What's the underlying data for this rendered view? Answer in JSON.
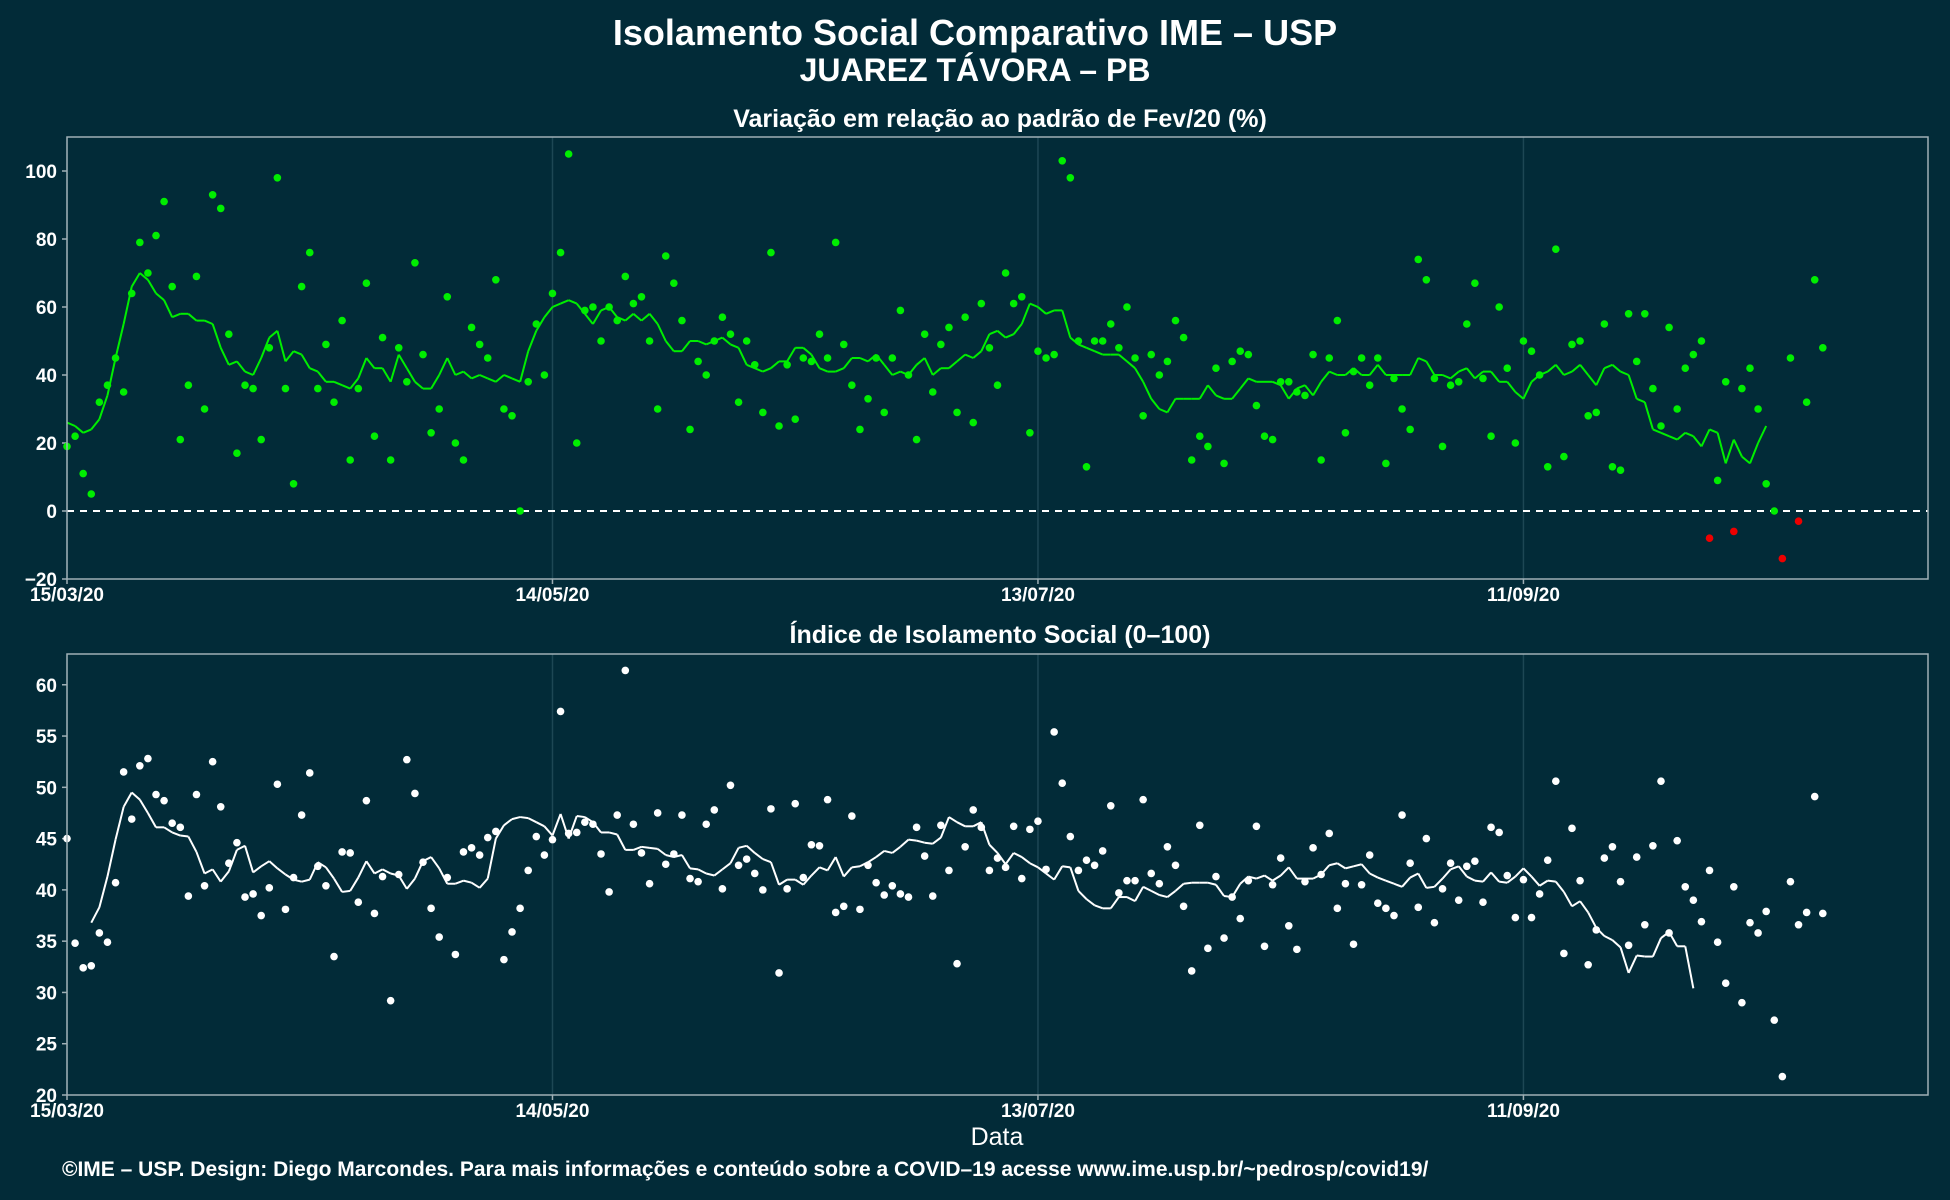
{
  "header": {
    "title": "Isolamento Social Comparativo IME – USP",
    "subtitle": "JUAREZ TÁVORA – PB"
  },
  "footer": {
    "text": "©IME – USP. Design: Diego Marcondes. Para mais informações e conteúdo sobre a COVID–19 acesse www.ime.usp.br/~pedrosp/covid19/"
  },
  "colors": {
    "background": "#022b38",
    "panel_border": "#9fb0b6",
    "grid": "#1d4754",
    "variation_positive": "#00ee00",
    "variation_negative": "#ee0000",
    "index_series": "#ffffff"
  },
  "chart_data": [
    {
      "type": "scatter",
      "title": "Variação em relação ao padrão de Fev/20 (%)",
      "xlabel": "",
      "ylabel": "",
      "x_start": "15/03/20",
      "x_tick_labels": [
        "15/03/20",
        "14/05/20",
        "13/07/20",
        "11/09/20"
      ],
      "x_tick_day_offsets": [
        0,
        60,
        120,
        180
      ],
      "ylim": [
        -20,
        110
      ],
      "y_ticks": [
        -20,
        0,
        20,
        40,
        60,
        80,
        100
      ],
      "reference_line": 0,
      "negative_color_rule": "red marks from 28/10/20 (day 227) onward",
      "series": [
        {
          "kind": "daily points",
          "values": [
            19,
            22,
            11,
            5,
            32,
            37,
            45,
            35,
            64,
            79,
            70,
            81,
            91,
            66,
            21,
            37,
            69,
            30,
            93,
            89,
            52,
            17,
            37,
            36,
            21,
            48,
            98,
            36,
            8,
            66,
            76,
            36,
            49,
            32,
            56,
            15,
            36,
            67,
            22,
            51,
            15,
            48,
            38,
            73,
            46,
            23,
            30,
            63,
            20,
            15,
            54,
            49,
            45,
            68,
            30,
            28,
            0,
            38,
            55,
            40,
            64,
            76,
            105,
            20,
            59,
            60,
            50,
            60,
            56,
            69,
            61,
            63,
            50,
            30,
            75,
            67,
            56,
            24,
            44,
            40,
            50,
            57,
            52,
            32,
            50,
            43,
            29,
            76,
            25,
            43,
            27,
            45,
            44,
            52,
            45,
            79,
            49,
            37,
            24,
            33,
            45,
            29,
            45,
            59,
            40,
            21,
            52,
            35,
            49,
            54,
            29,
            57,
            26,
            61,
            48,
            37,
            70,
            61,
            63,
            23,
            47,
            45,
            46,
            103,
            98,
            50,
            13,
            50,
            50,
            55,
            48,
            60,
            45,
            28,
            46,
            40,
            44,
            56,
            51,
            15,
            22,
            19,
            42,
            14,
            44,
            47,
            46,
            31,
            22,
            21,
            38,
            38,
            35,
            34,
            46,
            15,
            45,
            56,
            23,
            41,
            45,
            37,
            45,
            14,
            39,
            30,
            24,
            74,
            68,
            39,
            19,
            37,
            38,
            55,
            67,
            39,
            22,
            60,
            42,
            20,
            50,
            47,
            40,
            13,
            77,
            16,
            49,
            50,
            28,
            29,
            55,
            13,
            12,
            58,
            44,
            58,
            36,
            25,
            54,
            30,
            42,
            46,
            50,
            -8,
            9,
            38,
            -6,
            36,
            42,
            30,
            8,
            0,
            -14,
            45,
            -3,
            32,
            68,
            48
          ]
        },
        {
          "kind": "7-day moving average line",
          "values": [
            26,
            25,
            23,
            24,
            27,
            34,
            45,
            55,
            66,
            70,
            68,
            64,
            62,
            57,
            58,
            58,
            56,
            56,
            55,
            48,
            43,
            44,
            41,
            40,
            45,
            51,
            53,
            44,
            47,
            46,
            42,
            41,
            38,
            38,
            37,
            36,
            39,
            45,
            42,
            42,
            38,
            46,
            42,
            38,
            36,
            36,
            40,
            45,
            40,
            41,
            39,
            40,
            39,
            38,
            40,
            39,
            38,
            47,
            53,
            57,
            60,
            61,
            62,
            61,
            58,
            55,
            59,
            60,
            57,
            56,
            58,
            56,
            58,
            55,
            50,
            47,
            47,
            50,
            50,
            49,
            50,
            51,
            49,
            48,
            43,
            42,
            41,
            42,
            44,
            44,
            48,
            48,
            46,
            42,
            41,
            41,
            42,
            45,
            45,
            44,
            46,
            43,
            40,
            41,
            40,
            43,
            45,
            40,
            42,
            42,
            44,
            46,
            45,
            47,
            52,
            53,
            51,
            52,
            55,
            61,
            60,
            58,
            59,
            59,
            51,
            49,
            48,
            47,
            46,
            46,
            46,
            44,
            42,
            38,
            33,
            30,
            29,
            33,
            33,
            33,
            33,
            37,
            34,
            33,
            33,
            36,
            39,
            38,
            38,
            38,
            37,
            33,
            36,
            37,
            34,
            38,
            41,
            40,
            40,
            42,
            40,
            40,
            43,
            40,
            40,
            40,
            40,
            45,
            44,
            40,
            40,
            39,
            41,
            42,
            39,
            41,
            41,
            38,
            38,
            35,
            33,
            38,
            40,
            41,
            43,
            40,
            41,
            43,
            40,
            37,
            42,
            43,
            41,
            40,
            33,
            32,
            24,
            23,
            22,
            21,
            23,
            22,
            19,
            24,
            23,
            14,
            21,
            16,
            14,
            20,
            25
          ]
        }
      ]
    },
    {
      "type": "scatter",
      "title": "Índice de Isolamento Social (0–100)",
      "xlabel": "Data",
      "ylabel": "",
      "x_start": "15/03/20",
      "x_tick_labels": [
        "15/03/20",
        "14/05/20",
        "13/07/20",
        "11/09/20"
      ],
      "x_tick_day_offsets": [
        0,
        60,
        120,
        180
      ],
      "ylim": [
        20,
        63
      ],
      "y_ticks": [
        20,
        25,
        30,
        35,
        40,
        45,
        50,
        55,
        60
      ],
      "series": [
        {
          "kind": "daily points",
          "values": [
            45,
            34.8,
            32.4,
            32.6,
            35.8,
            34.9,
            40.7,
            51.5,
            46.9,
            52.1,
            52.8,
            49.3,
            48.7,
            46.5,
            46.1,
            39.4,
            49.3,
            40.4,
            52.5,
            48.1,
            42.6,
            44.6,
            39.3,
            39.6,
            37.5,
            40.2,
            50.3,
            38.1,
            41.2,
            47.3,
            51.4,
            42.3,
            40.4,
            33.5,
            43.7,
            43.6,
            38.8,
            48.7,
            37.7,
            41.3,
            29.2,
            41.5,
            52.7,
            49.4,
            42.7,
            38.2,
            35.4,
            41.2,
            33.7,
            43.7,
            44.1,
            43.4,
            45.1,
            45.7,
            33.2,
            35.9,
            38.2,
            41.9,
            45.2,
            43.4,
            44.9,
            57.4,
            45.5,
            45.6,
            46.6,
            46.4,
            43.5,
            39.8,
            47.3,
            61.4,
            46.4,
            43.6,
            40.6,
            47.5,
            42.5,
            43.5,
            47.3,
            41.1,
            40.8,
            46.4,
            47.8,
            40.1,
            50.2,
            42.4,
            43,
            41.6,
            40,
            47.9,
            31.9,
            40.1,
            48.4,
            41.2,
            44.4,
            44.3,
            48.8,
            37.8,
            38.4,
            47.2,
            38.1,
            42.4,
            40.7,
            39.5,
            40.4,
            39.6,
            39.3,
            46.1,
            43.3,
            39.4,
            46.3,
            41.9,
            32.8,
            44.2,
            47.8,
            46.1,
            41.9,
            43.1,
            42.2,
            46.2,
            41.1,
            45.9,
            46.7,
            42,
            55.4,
            50.4,
            45.2,
            41.9,
            42.9,
            42.4,
            43.8,
            48.2,
            39.7,
            40.9,
            40.9,
            48.8,
            41.6,
            40.6,
            44.2,
            42.4,
            38.4,
            32.1,
            46.3,
            34.3,
            41.3,
            35.3,
            39.3,
            37.2,
            40.9,
            46.2,
            34.5,
            40.5,
            43.1,
            36.5,
            34.2,
            40.8,
            44.1,
            41.5,
            45.5,
            38.2,
            40.6,
            34.7,
            40.5,
            43.4,
            38.7,
            38.2,
            37.5,
            47.3,
            42.6,
            38.3,
            45,
            36.8,
            40.1,
            42.6,
            39,
            42.3,
            42.8,
            38.8,
            46.1,
            45.6,
            41.4,
            37.3,
            41,
            37.3,
            39.6,
            42.9,
            50.6,
            33.8,
            46,
            40.9,
            32.7,
            36.1,
            43.1,
            44.2,
            40.8,
            34.6,
            43.2,
            36.6,
            44.3,
            50.6,
            35.8,
            44.8,
            40.3,
            39,
            36.9,
            41.9,
            34.9,
            30.9,
            40.3,
            29,
            36.8,
            35.8,
            37.9,
            27.3,
            21.8,
            40.8,
            36.6,
            37.8,
            49.1,
            37.7
          ]
        },
        {
          "kind": "7-day moving average line",
          "values": [
            36.8,
            38.3,
            41.3,
            44.9,
            48.1,
            49.5,
            48.8,
            47.5,
            46.1,
            46.1,
            45.6,
            45.3,
            45.2,
            43.7,
            41.6,
            42,
            40.8,
            41.8,
            43.9,
            44.3,
            41.7,
            42.3,
            42.8,
            42.1,
            41.5,
            41,
            40.8,
            41,
            42.7,
            42.2,
            41.1,
            39.8,
            39.9,
            41.2,
            42.8,
            41.6,
            42,
            41.6,
            41.4,
            40.1,
            41.1,
            42.8,
            43.2,
            42.1,
            40.6,
            40.6,
            40.9,
            40.7,
            40.2,
            41.1,
            45,
            46.3,
            46.9,
            47.1,
            47,
            46.6,
            46.2,
            45.3,
            47.4,
            45,
            47.2,
            47.1,
            46.6,
            45.6,
            45.6,
            45.4,
            43.9,
            43.9,
            44.2,
            44.1,
            44,
            43.4,
            43.2,
            43.4,
            42.1,
            42,
            41.6,
            41.4,
            42,
            42.6,
            44.1,
            44.3,
            43.6,
            43,
            42.7,
            40.5,
            41,
            41,
            40.5,
            41.4,
            42.2,
            41.9,
            43.2,
            41.3,
            42.2,
            42.3,
            42.7,
            43.2,
            43.8,
            43.6,
            44.2,
            44.9,
            44.8,
            44.6,
            44.5,
            45.1,
            47.1,
            46.6,
            46.2,
            46.2,
            46.6,
            44.4,
            43.6,
            42.5,
            43.6,
            43.2,
            42.6,
            42.2,
            41.6,
            41,
            42.3,
            42.2,
            39.9,
            39.1,
            38.5,
            38.2,
            38.2,
            39.3,
            39.3,
            38.9,
            40.3,
            39.9,
            39.5,
            39.3,
            39.9,
            40.6,
            40.7,
            40.7,
            40.7,
            40.5,
            39.4,
            39.3,
            40.6,
            41.3,
            41.1,
            41.4,
            40.9,
            41.4,
            42.2,
            41.1,
            41.1,
            41.1,
            41.5,
            42.4,
            42.6,
            42.1,
            42.3,
            42.5,
            41.6,
            41.2,
            40.9,
            40.6,
            40.3,
            41.2,
            41.6,
            40.2,
            40.3,
            41.1,
            42,
            42.3,
            41.3,
            40.9,
            40.8,
            41.7,
            40.8,
            40.7,
            41.3,
            42.1,
            41.3,
            40.4,
            40.9,
            40.8,
            39.8,
            38.4,
            38.9,
            37.8,
            36.3,
            35.5,
            35.1,
            34.4,
            31.9,
            33.6,
            33.5,
            33.5,
            35.3,
            35.9,
            34.5,
            34.5,
            30.4
          ]
        }
      ]
    }
  ]
}
